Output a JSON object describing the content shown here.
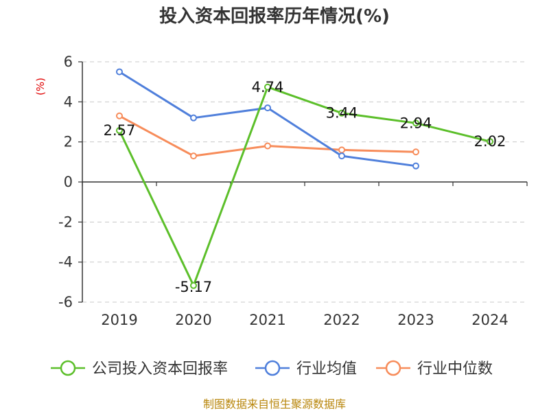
{
  "chart_data": {
    "type": "line",
    "title": "投入资本回报率历年情况(%)",
    "ylabel": "(%)",
    "categories": [
      "2019",
      "2020",
      "2021",
      "2022",
      "2023",
      "2024"
    ],
    "ylim": [
      -6,
      6
    ],
    "yticks": [
      6,
      4,
      2,
      0,
      -2,
      -4,
      -6
    ],
    "grid": true,
    "legend_position": "bottom",
    "series": [
      {
        "name": "公司投入资本回报率",
        "color": "#5cbf2a",
        "values": [
          2.57,
          -5.17,
          4.74,
          3.44,
          2.94,
          2.02
        ],
        "labels": [
          "2.57",
          "-5.17",
          "4.74",
          "3.44",
          "2.94",
          "2.02"
        ]
      },
      {
        "name": "行业均值",
        "color": "#4f7fdb",
        "values": [
          5.5,
          3.2,
          3.7,
          1.3,
          0.8,
          null
        ]
      },
      {
        "name": "行业中位数",
        "color": "#f78c5a",
        "values": [
          3.3,
          1.3,
          1.8,
          1.6,
          1.5,
          null
        ]
      }
    ],
    "source": "制图数据来自恒生聚源数据库"
  }
}
